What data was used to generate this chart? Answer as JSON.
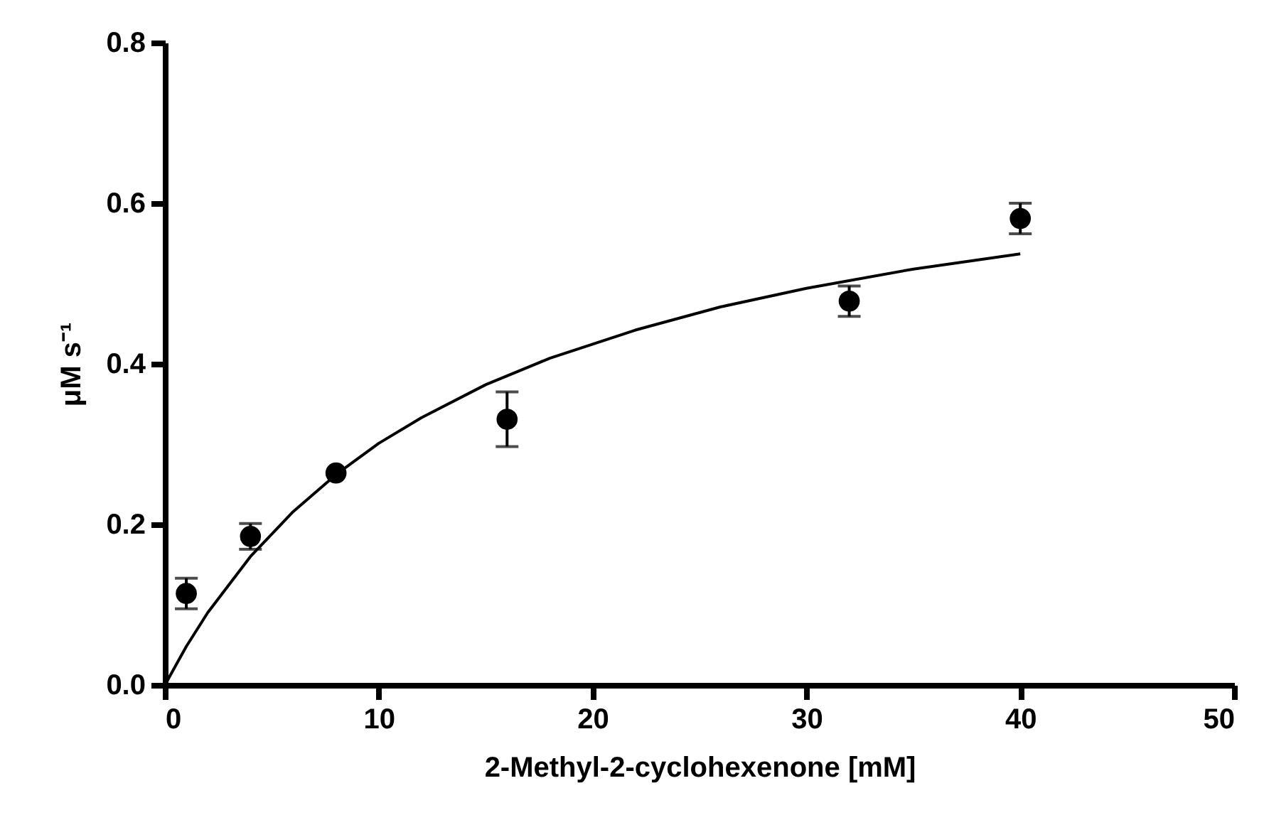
{
  "chart_data": {
    "type": "scatter",
    "xlabel": "2-Methyl-2-cyclohexenone [mM]",
    "ylabel": "μM s⁻¹",
    "xlim": [
      0,
      50
    ],
    "xticks": [
      0,
      10,
      20,
      30,
      40,
      50
    ],
    "ylim": [
      0,
      0.8
    ],
    "yticks": [
      {
        "value": 0,
        "label": "0.0"
      },
      0.2,
      0.4,
      0.6,
      0.8
    ],
    "grid": false,
    "marker": "circle",
    "series": [
      {
        "color": "#000000",
        "x": [
          1,
          4,
          8,
          16,
          32,
          40
        ],
        "values": [
          0.114,
          0.185,
          0.264,
          0.331,
          0.478,
          0.581
        ],
        "errors": [
          0.019,
          0.016,
          null,
          0.034,
          0.019,
          0.019
        ]
      },
      {
        "type": "line",
        "color": "#000000",
        "line_style": "solid",
        "marker": "none",
        "x": [
          0,
          1,
          2,
          4,
          6,
          8,
          10,
          12,
          15,
          18,
          22,
          26,
          30,
          35,
          40
        ],
        "values": [
          0,
          0.048,
          0.09,
          0.16,
          0.216,
          0.262,
          0.301,
          0.333,
          0.374,
          0.407,
          0.442,
          0.471,
          0.494,
          0.518,
          0.537
        ]
      }
    ]
  }
}
